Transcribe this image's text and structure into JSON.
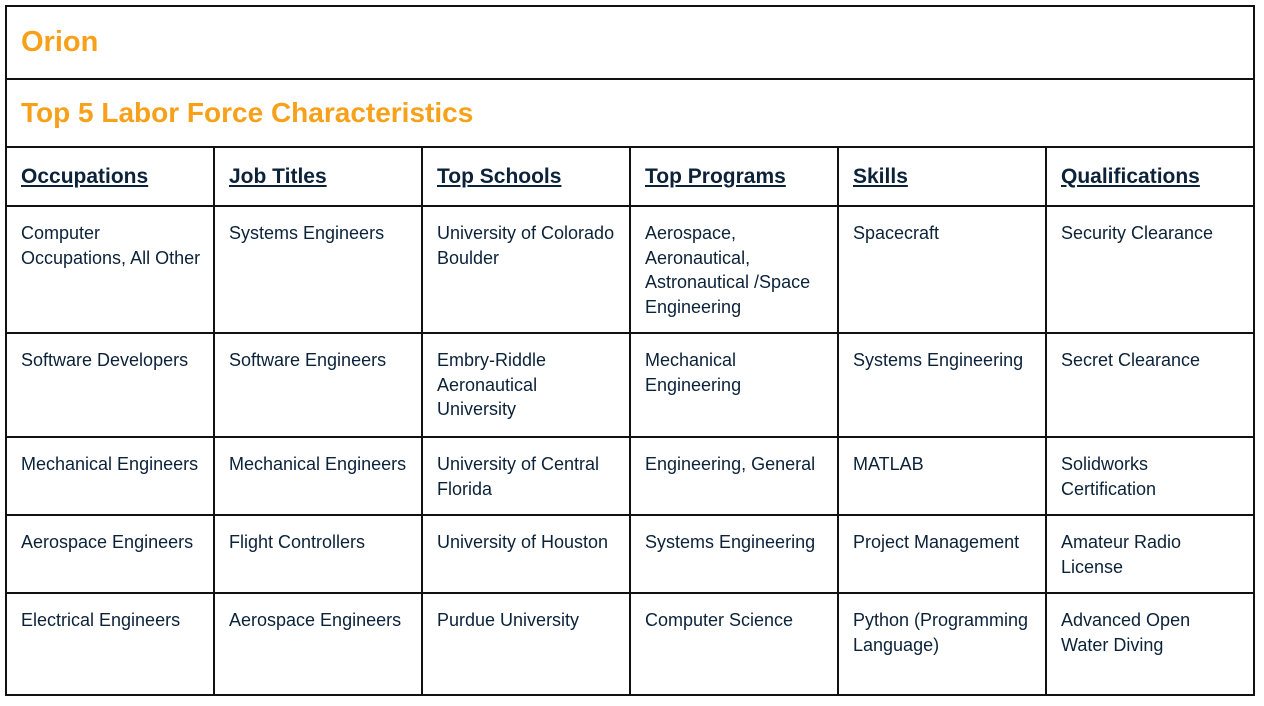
{
  "header": {
    "title": "Orion",
    "subtitle": "Top 5 Labor Force Characteristics"
  },
  "table": {
    "columns": [
      "Occupations",
      "Job Titles",
      "Top Schools",
      "Top Programs",
      "Skills",
      "Qualifications"
    ],
    "rows": [
      [
        "Computer Occupations, All Other",
        "Systems Engineers",
        "University of Colorado Boulder",
        "Aerospace, Aeronautical, Astronautical /Space Engineering",
        "Spacecraft",
        "Security Clearance"
      ],
      [
        "Software Developers",
        "Software Engineers",
        "Embry-Riddle Aeronautical University",
        "Mechanical Engineering",
        "Systems Engineering",
        "Secret Clearance"
      ],
      [
        "Mechanical Engineers",
        "Mechanical Engineers",
        "University of Central Florida",
        "Engineering, General",
        "MATLAB",
        "Solidworks Certification"
      ],
      [
        "Aerospace Engineers",
        "Flight Controllers",
        "University of Houston",
        "Systems Engineering",
        "Project Management",
        "Amateur Radio License"
      ],
      [
        "Electrical Engineers",
        "Aerospace Engineers",
        "Purdue University",
        "Computer Science",
        "Python (Programming Language)",
        "Advanced Open Water Diving"
      ]
    ]
  }
}
